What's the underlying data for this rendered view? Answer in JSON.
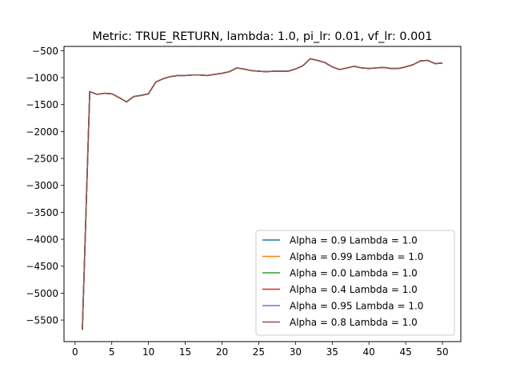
{
  "chart_data": {
    "type": "line",
    "title": "Metric: TRUE_RETURN, lambda: 1.0, pi_lr: 0.01, vf_lr: 0.001",
    "xlabel": "",
    "ylabel": "",
    "xlim": [
      -1.5,
      52.5
    ],
    "ylim": [
      -5900,
      -420
    ],
    "xticks": [
      0,
      5,
      10,
      15,
      20,
      25,
      30,
      35,
      40,
      45,
      50
    ],
    "yticks": [
      -5500,
      -5000,
      -4500,
      -4000,
      -3500,
      -3000,
      -2500,
      -2000,
      -1500,
      -1000,
      -500
    ],
    "xtick_labels": [
      "0",
      "5",
      "10",
      "15",
      "20",
      "25",
      "30",
      "35",
      "40",
      "45",
      "50"
    ],
    "ytick_labels": [
      "−5500",
      "−5000",
      "−4500",
      "−4000",
      "−3500",
      "−3000",
      "−2500",
      "−2000",
      "−1500",
      "−1000",
      "−500"
    ],
    "grid": false,
    "legend_position": "lower-right",
    "x": [
      1,
      2,
      3,
      4,
      5,
      6,
      7,
      8,
      9,
      10,
      11,
      12,
      13,
      14,
      15,
      16,
      17,
      18,
      19,
      20,
      21,
      22,
      23,
      24,
      25,
      26,
      27,
      28,
      29,
      30,
      31,
      32,
      33,
      34,
      35,
      36,
      37,
      38,
      39,
      40,
      41,
      42,
      43,
      44,
      45,
      46,
      47,
      48,
      49,
      50
    ],
    "series": [
      {
        "name": "Alpha = 0.9  Lambda = 1.0",
        "color": "#1f77b4"
      },
      {
        "name": "Alpha = 0.99  Lambda = 1.0",
        "color": "#ff7f0e"
      },
      {
        "name": "Alpha = 0.0  Lambda = 1.0",
        "color": "#2ca02c"
      },
      {
        "name": "Alpha = 0.4  Lambda = 1.0",
        "color": "#d62728"
      },
      {
        "name": "Alpha = 0.95  Lambda = 1.0",
        "color": "#9467bd"
      },
      {
        "name": "Alpha = 0.8  Lambda = 1.0",
        "color": "#8c564b"
      }
    ],
    "values": [
      -5680,
      -1260,
      -1310,
      -1290,
      -1300,
      -1370,
      -1450,
      -1350,
      -1330,
      -1300,
      -1080,
      -1020,
      -980,
      -960,
      -960,
      -950,
      -950,
      -960,
      -940,
      -920,
      -890,
      -820,
      -840,
      -870,
      -880,
      -890,
      -880,
      -880,
      -880,
      -840,
      -780,
      -650,
      -680,
      -720,
      -800,
      -850,
      -820,
      -790,
      -820,
      -830,
      -820,
      -810,
      -830,
      -830,
      -800,
      -760,
      -690,
      -680,
      -740,
      -730
    ]
  }
}
